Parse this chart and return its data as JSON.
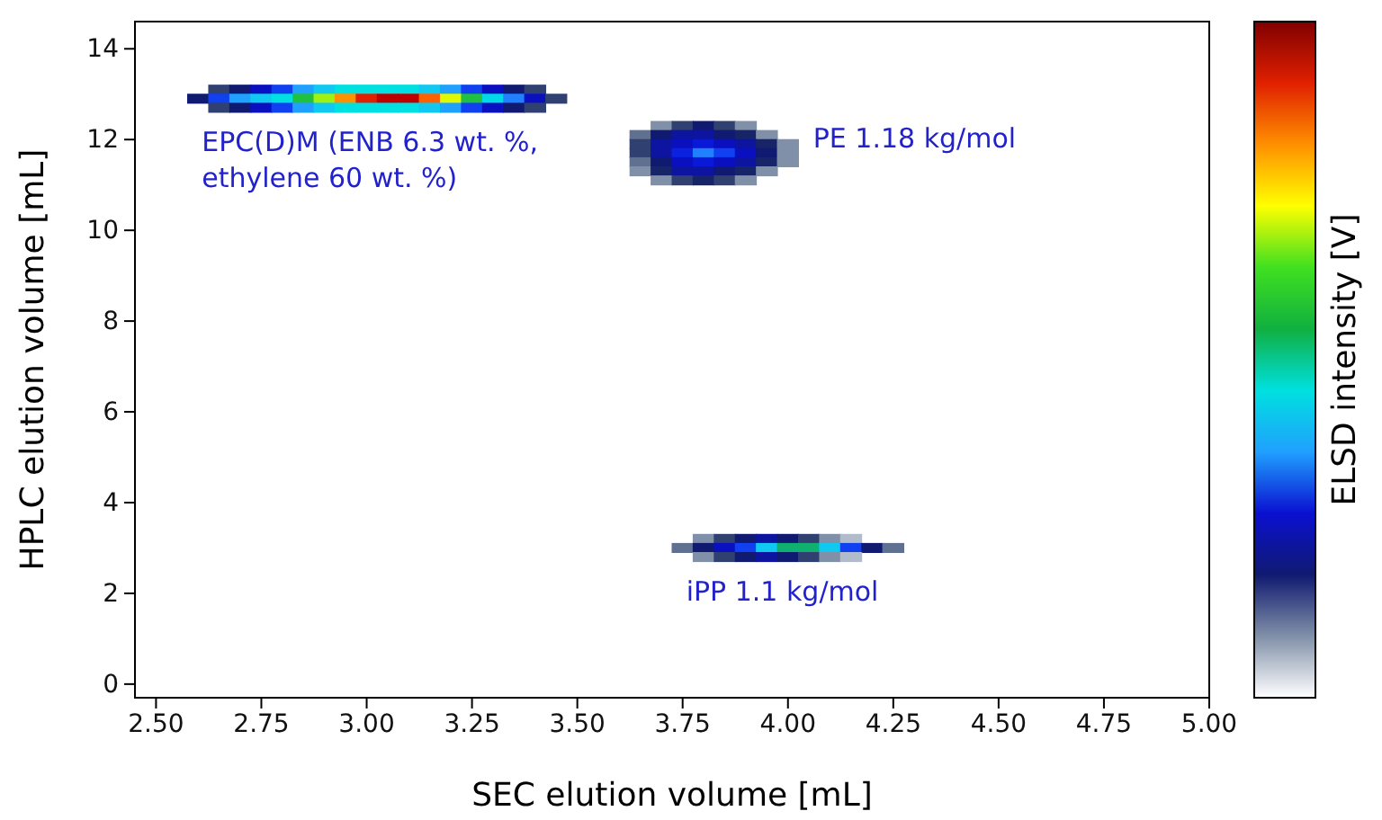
{
  "chart_data": {
    "type": "scatter",
    "xlabel": "SEC elution volume [mL]",
    "ylabel": "HPLC elution volume [mL]",
    "clabel": "ELSD intensity [V]",
    "marker": "square",
    "xlim": [
      2.45,
      5.0
    ],
    "ylim": [
      -0.3,
      14.6
    ],
    "xticks": [
      {
        "value": 2.5,
        "label": "2.50"
      },
      {
        "value": 2.75,
        "label": "2.75"
      },
      {
        "value": 3,
        "label": "3.00"
      },
      {
        "value": 3.25,
        "label": "3.25"
      },
      {
        "value": 3.5,
        "label": "3.50"
      },
      {
        "value": 3.75,
        "label": "3.75"
      },
      {
        "value": 4,
        "label": "4.00"
      },
      {
        "value": 4.25,
        "label": "4.25"
      },
      {
        "value": 4.5,
        "label": "4.50"
      },
      {
        "value": 4.75,
        "label": "4.75"
      },
      {
        "value": 5,
        "label": "5.00"
      }
    ],
    "yticks": [
      0,
      2,
      4,
      6,
      8,
      10,
      12,
      14
    ],
    "series": [
      {
        "x": [
          2.65,
          2.7,
          2.75,
          2.8,
          2.85,
          2.9,
          2.95,
          3.0,
          3.05,
          3.1,
          3.15,
          3.2,
          3.25,
          3.3,
          3.35,
          3.4,
          2.6,
          2.65,
          2.7,
          2.75,
          2.8,
          2.85,
          2.9,
          2.95,
          3.0,
          3.05,
          3.1,
          3.15,
          3.2,
          3.25,
          3.3,
          3.35,
          3.4,
          3.45,
          2.65,
          2.7,
          2.75,
          2.8,
          2.85,
          2.9,
          2.95,
          3.0,
          3.05,
          3.1,
          3.15,
          3.2,
          3.25,
          3.3,
          3.35,
          3.4
        ],
        "values": [
          13.1,
          13.1,
          13.1,
          13.1,
          13.1,
          13.1,
          13.1,
          13.1,
          13.1,
          13.1,
          13.1,
          13.1,
          13.1,
          13.1,
          13.1,
          13.1,
          12.9,
          12.9,
          12.9,
          12.9,
          12.9,
          12.9,
          12.9,
          12.9,
          12.9,
          12.9,
          12.9,
          12.9,
          12.9,
          12.9,
          12.9,
          12.9,
          12.9,
          12.9,
          12.7,
          12.7,
          12.7,
          12.7,
          12.7,
          12.7,
          12.7,
          12.7,
          12.7,
          12.7,
          12.7,
          12.7,
          12.7,
          12.7,
          12.7,
          12.7
        ],
        "colors": [
          "#304070",
          "#101a70",
          "#0a10c0",
          "#1040f0",
          "#20a0ff",
          "#10c8f0",
          "#00e0e0",
          "#00e0e0",
          "#00e0e0",
          "#00e0e0",
          "#10c8f0",
          "#20a0ff",
          "#1040f0",
          "#0a10c0",
          "#101a70",
          "#304070",
          "#101a70",
          "#1040f0",
          "#20a0ff",
          "#10c8f0",
          "#00e0e0",
          "#20c040",
          "#a0f010",
          "#ff9000",
          "#e02000",
          "#c00000",
          "#c00000",
          "#ff6000",
          "#e0f800",
          "#20c040",
          "#00d8e8",
          "#2080ff",
          "#0a10c0",
          "#304070",
          "#304070",
          "#101a70",
          "#0a10c0",
          "#1040f0",
          "#20a0ff",
          "#10c8f0",
          "#00e0e0",
          "#00e0e0",
          "#00e0e0",
          "#00e0e0",
          "#10c8f0",
          "#20a0ff",
          "#1040f0",
          "#0a10c0",
          "#101a70",
          "#304070"
        ]
      },
      {
        "x": [
          3.7,
          3.75,
          3.8,
          3.85,
          3.9,
          3.65,
          3.7,
          3.75,
          3.8,
          3.85,
          3.9,
          3.95,
          3.65,
          3.7,
          3.75,
          3.8,
          3.85,
          3.9,
          3.95,
          4.0,
          3.65,
          3.7,
          3.75,
          3.8,
          3.85,
          3.9,
          3.95,
          4.0,
          3.65,
          3.7,
          3.75,
          3.8,
          3.85,
          3.9,
          3.95,
          4.0,
          3.65,
          3.7,
          3.75,
          3.8,
          3.85,
          3.9,
          3.95,
          3.7,
          3.75,
          3.8,
          3.85,
          3.9
        ],
        "values": [
          12.3,
          12.3,
          12.3,
          12.3,
          12.3,
          12.1,
          12.1,
          12.1,
          12.1,
          12.1,
          12.1,
          12.1,
          11.9,
          11.9,
          11.9,
          11.9,
          11.9,
          11.9,
          11.9,
          11.9,
          11.7,
          11.7,
          11.7,
          11.7,
          11.7,
          11.7,
          11.7,
          11.7,
          11.5,
          11.5,
          11.5,
          11.5,
          11.5,
          11.5,
          11.5,
          11.5,
          11.3,
          11.3,
          11.3,
          11.3,
          11.3,
          11.3,
          11.3,
          11.1,
          11.1,
          11.1,
          11.1,
          11.1
        ],
        "colors": [
          "#8090a8",
          "#304070",
          "#101a70",
          "#304070",
          "#8090a8",
          "#607090",
          "#101a70",
          "#0c14a0",
          "#0c14a0",
          "#101a70",
          "#182468",
          "#8090a8",
          "#304070",
          "#0c14a0",
          "#0a10c0",
          "#0a18d8",
          "#0a10c0",
          "#0c14a0",
          "#182468",
          "#8090a8",
          "#304070",
          "#0c14a0",
          "#0c20e0",
          "#2080ff",
          "#1040f0",
          "#0a10c0",
          "#101a70",
          "#8090a8",
          "#607090",
          "#101a70",
          "#0a10c0",
          "#0a18d8",
          "#0a10c0",
          "#0c14a0",
          "#182468",
          "#8090a8",
          "#8090a8",
          "#182468",
          "#0c14a0",
          "#0c14a0",
          "#101a70",
          "#182468",
          "#8090a8",
          "#8090a8",
          "#304070",
          "#182468",
          "#304070",
          "#8090a8"
        ]
      },
      {
        "x": [
          3.8,
          3.85,
          3.9,
          3.95,
          4.0,
          4.05,
          4.1,
          4.15,
          3.75,
          3.8,
          3.85,
          3.9,
          3.95,
          4.0,
          4.05,
          4.1,
          4.15,
          4.2,
          4.25,
          3.8,
          3.85,
          3.9,
          3.95,
          4.0,
          4.05,
          4.1,
          4.15
        ],
        "values": [
          3.2,
          3.2,
          3.2,
          3.2,
          3.2,
          3.2,
          3.2,
          3.2,
          3.0,
          3.0,
          3.0,
          3.0,
          3.0,
          3.0,
          3.0,
          3.0,
          3.0,
          3.0,
          3.0,
          2.8,
          2.8,
          2.8,
          2.8,
          2.8,
          2.8,
          2.8,
          2.8
        ],
        "colors": [
          "#8090a8",
          "#304070",
          "#101a70",
          "#0c14a0",
          "#101a70",
          "#304070",
          "#8090a8",
          "#b0bccc",
          "#607090",
          "#101a70",
          "#0a10c0",
          "#1040f0",
          "#10c8f0",
          "#10b070",
          "#10b070",
          "#10c8f0",
          "#1040f0",
          "#101a70",
          "#607090",
          "#8090a8",
          "#304070",
          "#101a70",
          "#0c14a0",
          "#101a70",
          "#304070",
          "#8090a8",
          "#b0bccc"
        ]
      }
    ],
    "annotations": [
      "EPC(D)M (ENB 6.3 wt. %,\nethylene 60 wt. %)",
      "PE 1.18 kg/mol",
      "iPP 1.1 kg/mol"
    ]
  }
}
